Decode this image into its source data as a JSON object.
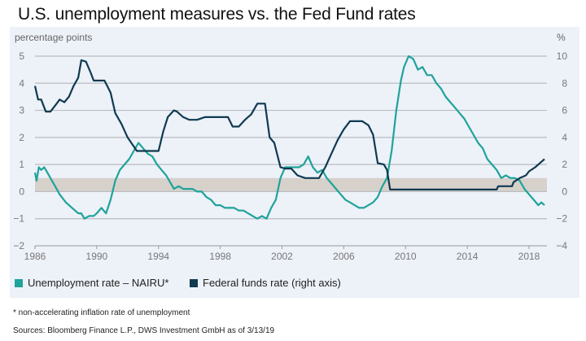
{
  "header": {
    "title": "U.S. unemployment measures vs. the Fed Fund rates"
  },
  "chart_data": {
    "type": "line",
    "title": "U.S. unemployment measures vs. the Fed Fund rates",
    "ylabel_left": "percentage points",
    "ylabel_right": "%",
    "xlabel": "",
    "x_ticks": [
      "1986",
      "1990",
      "1994",
      "1998",
      "2002",
      "2006",
      "2010",
      "2014",
      "2018"
    ],
    "xlim": [
      1986,
      2019.2
    ],
    "y_left": {
      "ticks": [
        "5",
        "4",
        "3",
        "2",
        "1",
        "0",
        "−1",
        "−2"
      ],
      "values": [
        5,
        4,
        3,
        2,
        1,
        0,
        -1,
        -2
      ],
      "lim": [
        -2,
        5
      ]
    },
    "y_right": {
      "ticks": [
        "10",
        "8",
        "6",
        "4",
        "2",
        "0",
        "−2",
        "−4"
      ],
      "values": [
        10,
        8,
        6,
        4,
        2,
        0,
        -2,
        -4
      ],
      "lim": [
        -4,
        10
      ]
    },
    "grid": true,
    "shaded_band": {
      "axis": "left",
      "from": 0,
      "to": 0.5,
      "color": "#d6d1cb"
    },
    "legend_position": "bottom-left",
    "series": [
      {
        "name": "Unemployment rate – NAIRU*",
        "axis": "left",
        "color": "#1fa39a",
        "x": [
          1986.0,
          1986.1,
          1986.25,
          1986.4,
          1986.6,
          1986.8,
          1987.0,
          1987.3,
          1987.6,
          1988.0,
          1988.4,
          1988.8,
          1989.0,
          1989.2,
          1989.5,
          1989.8,
          1990.0,
          1990.3,
          1990.6,
          1990.9,
          1991.2,
          1991.5,
          1991.8,
          1992.1,
          1992.4,
          1992.7,
          1993.0,
          1993.3,
          1993.6,
          1993.9,
          1994.2,
          1994.5,
          1994.8,
          1995.0,
          1995.3,
          1995.6,
          1995.9,
          1996.2,
          1996.5,
          1996.8,
          1997.1,
          1997.4,
          1997.7,
          1998.0,
          1998.3,
          1998.6,
          1998.9,
          1999.2,
          1999.5,
          1999.8,
          2000.1,
          2000.4,
          2000.7,
          2001.0,
          2001.3,
          2001.6,
          2001.9,
          2002.2,
          2002.5,
          2002.8,
          2003.1,
          2003.4,
          2003.7,
          2004.0,
          2004.3,
          2004.6,
          2004.9,
          2005.2,
          2005.5,
          2005.8,
          2006.1,
          2006.4,
          2006.7,
          2007.0,
          2007.3,
          2007.6,
          2007.9,
          2008.2,
          2008.5,
          2008.8,
          2009.1,
          2009.4,
          2009.7,
          2009.9,
          2010.2,
          2010.5,
          2010.8,
          2011.1,
          2011.4,
          2011.7,
          2012.0,
          2012.3,
          2012.6,
          2012.9,
          2013.2,
          2013.5,
          2013.8,
          2014.1,
          2014.4,
          2014.7,
          2015.0,
          2015.3,
          2015.6,
          2015.9,
          2016.2,
          2016.5,
          2016.8,
          2017.1,
          2017.4,
          2017.7,
          2018.0,
          2018.3,
          2018.6,
          2018.8,
          2019.0
        ],
        "y": [
          0.7,
          0.4,
          0.9,
          0.8,
          0.9,
          0.7,
          0.5,
          0.2,
          -0.1,
          -0.4,
          -0.6,
          -0.8,
          -0.8,
          -1.0,
          -0.9,
          -0.9,
          -0.8,
          -0.6,
          -0.8,
          -0.3,
          0.4,
          0.8,
          1.0,
          1.2,
          1.5,
          1.8,
          1.6,
          1.4,
          1.3,
          1.0,
          0.8,
          0.6,
          0.3,
          0.1,
          0.2,
          0.1,
          0.1,
          0.1,
          0.0,
          0.0,
          -0.2,
          -0.3,
          -0.5,
          -0.5,
          -0.6,
          -0.6,
          -0.6,
          -0.7,
          -0.7,
          -0.8,
          -0.9,
          -1.0,
          -0.9,
          -1.0,
          -0.6,
          -0.3,
          0.5,
          0.9,
          0.9,
          0.9,
          0.9,
          1.0,
          1.3,
          0.9,
          0.7,
          0.8,
          0.5,
          0.3,
          0.1,
          -0.1,
          -0.3,
          -0.4,
          -0.5,
          -0.6,
          -0.6,
          -0.5,
          -0.4,
          -0.2,
          0.2,
          0.5,
          1.5,
          3.0,
          4.1,
          4.6,
          5.0,
          4.9,
          4.5,
          4.6,
          4.3,
          4.3,
          4.0,
          3.8,
          3.5,
          3.3,
          3.1,
          2.9,
          2.7,
          2.4,
          2.1,
          1.8,
          1.6,
          1.2,
          1.0,
          0.8,
          0.5,
          0.6,
          0.5,
          0.5,
          0.4,
          0.1,
          -0.1,
          -0.3,
          -0.5,
          -0.4,
          -0.5
        ]
      },
      {
        "name": "Federal funds rate (right axis)",
        "axis": "right",
        "color": "#0f3a50",
        "x": [
          1986.0,
          1986.2,
          1986.4,
          1986.7,
          1987.0,
          1987.4,
          1987.6,
          1987.9,
          1988.2,
          1988.5,
          1988.8,
          1989.0,
          1989.3,
          1989.6,
          1989.8,
          1990.0,
          1990.5,
          1990.9,
          1991.2,
          1991.6,
          1992.0,
          1992.3,
          1992.6,
          1993.0,
          1993.5,
          1994.0,
          1994.3,
          1994.6,
          1995.0,
          1995.2,
          1995.6,
          1996.0,
          1996.5,
          1997.0,
          1997.5,
          1998.0,
          1998.5,
          1998.8,
          1999.2,
          1999.6,
          2000.0,
          2000.4,
          2000.9,
          2001.2,
          2001.5,
          2001.9,
          2002.2,
          2002.6,
          2003.0,
          2003.5,
          2004.0,
          2004.4,
          2004.8,
          2005.2,
          2005.6,
          2006.0,
          2006.4,
          2006.8,
          2007.2,
          2007.6,
          2007.9,
          2008.2,
          2008.6,
          2008.8,
          2009.0,
          2010.0,
          2012.0,
          2014.0,
          2015.9,
          2016.0,
          2016.9,
          2017.0,
          2017.4,
          2017.8,
          2018.0,
          2018.4,
          2018.8,
          2019.0
        ],
        "y": [
          7.8,
          6.8,
          6.8,
          5.9,
          5.9,
          6.5,
          6.8,
          6.6,
          7.0,
          7.8,
          8.4,
          9.7,
          9.6,
          8.8,
          8.2,
          8.2,
          8.2,
          7.3,
          5.8,
          5.0,
          4.0,
          3.5,
          3.0,
          3.0,
          3.0,
          3.0,
          4.4,
          5.5,
          6.0,
          5.9,
          5.5,
          5.3,
          5.3,
          5.5,
          5.5,
          5.5,
          5.5,
          4.8,
          4.8,
          5.3,
          5.7,
          6.5,
          6.5,
          4.0,
          3.6,
          1.8,
          1.7,
          1.7,
          1.2,
          1.0,
          1.0,
          1.0,
          1.8,
          2.8,
          3.8,
          4.6,
          5.2,
          5.2,
          5.2,
          4.9,
          4.2,
          2.1,
          2.0,
          1.6,
          0.15,
          0.15,
          0.15,
          0.15,
          0.15,
          0.4,
          0.4,
          0.7,
          1.0,
          1.2,
          1.5,
          1.8,
          2.2,
          2.4
        ]
      }
    ]
  },
  "legend": {
    "items": [
      {
        "label": "Unemployment rate – NAIRU*",
        "color": "#1fa39a"
      },
      {
        "label": "Federal funds rate (right axis)",
        "color": "#0f3a50"
      }
    ]
  },
  "footnote": "* non-accelerating inflation rate of unemployment",
  "sources": "Sources: Bloomberg Finance L.P., DWS Investment GmbH as of 3/13/19"
}
